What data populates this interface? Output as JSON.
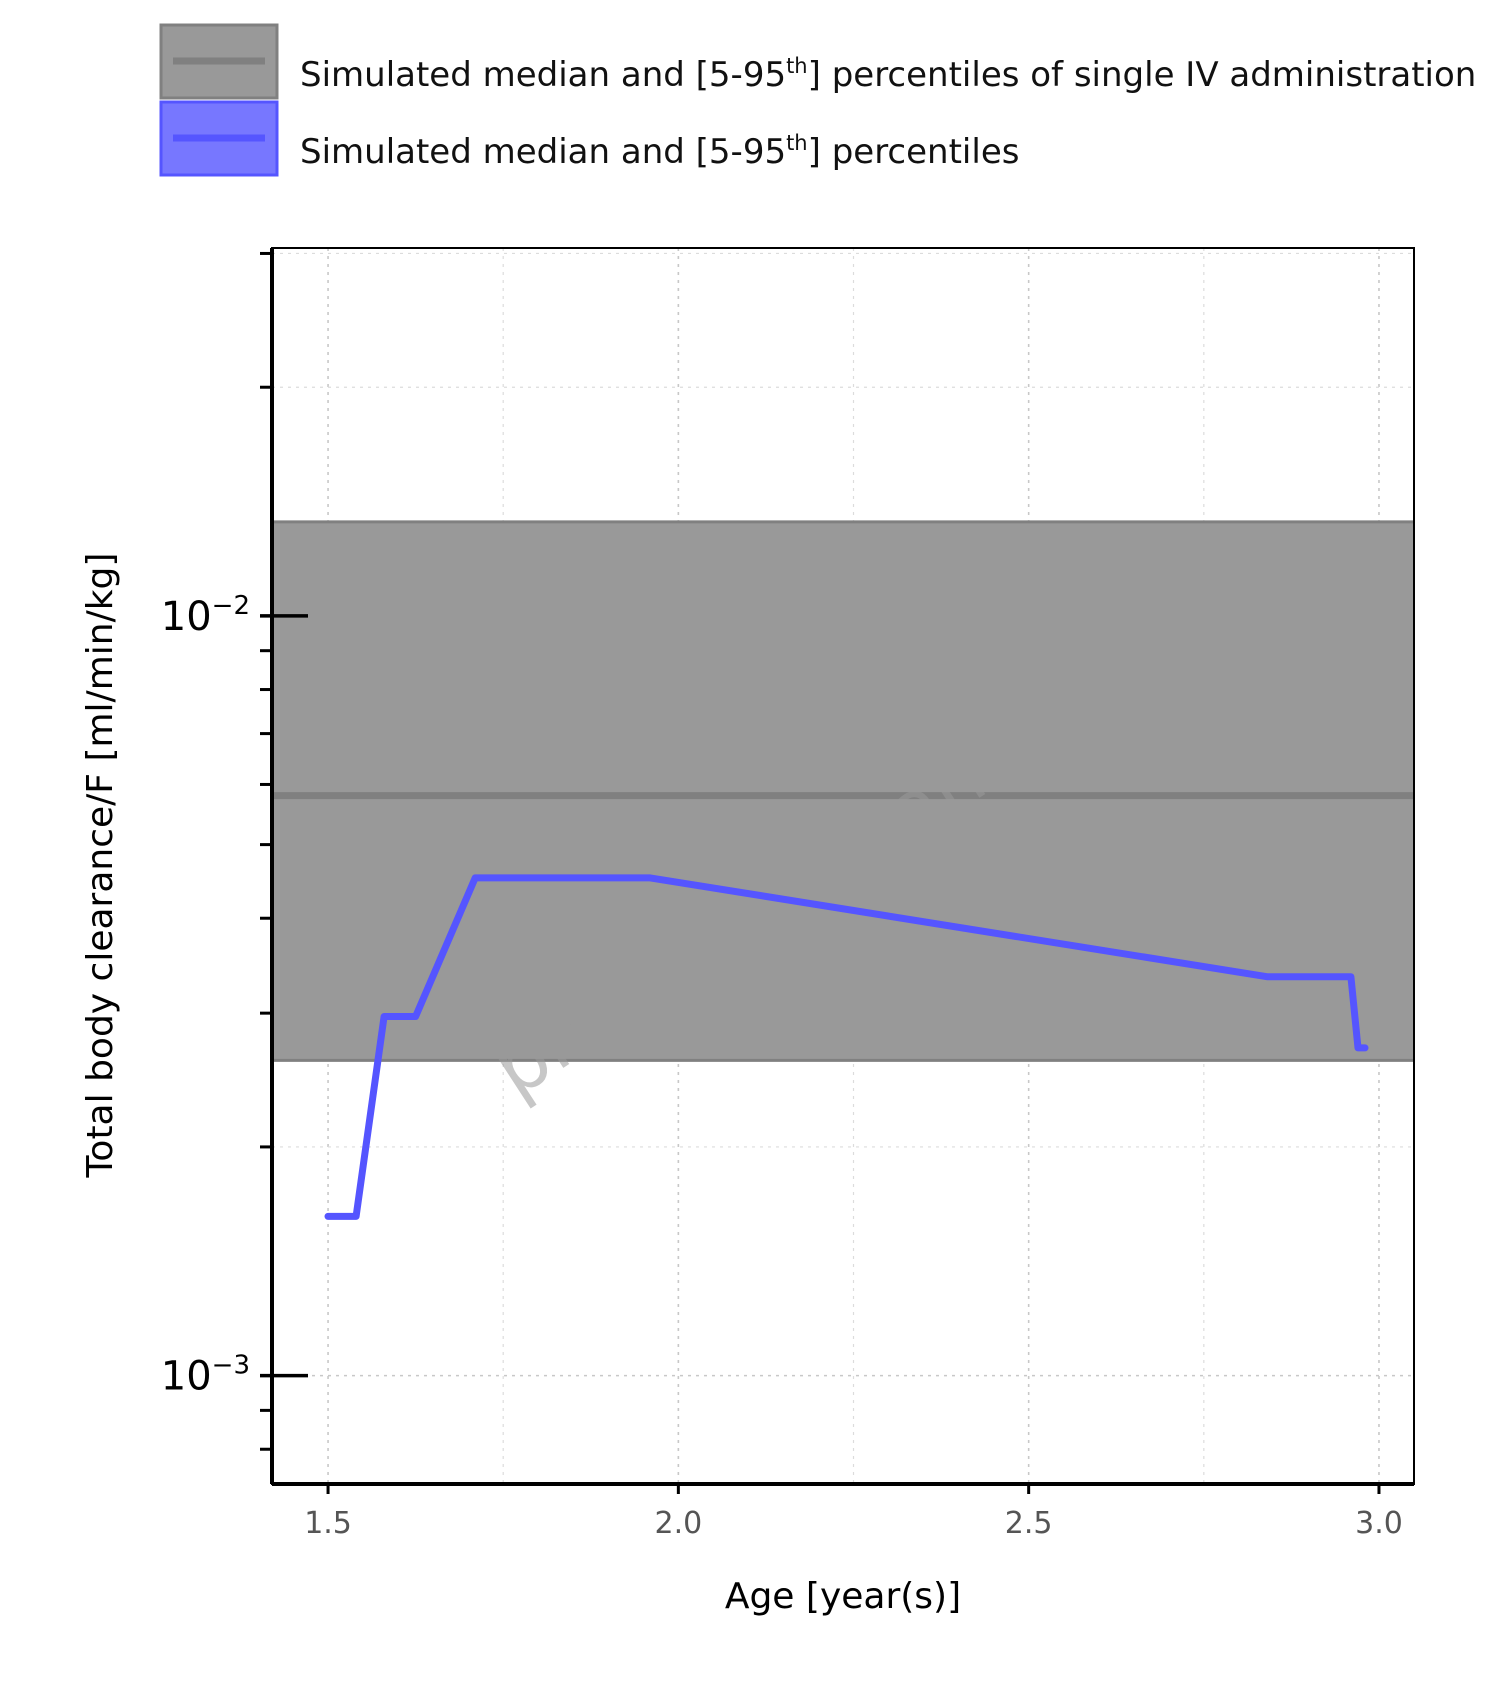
{
  "chart_data": {
    "type": "line",
    "xlabel": "Age [year(s)]",
    "ylabel": "Total body clearance/F [ml/min/kg]",
    "xlim": [
      1.42,
      3.05
    ],
    "ylim": [
      0.00072,
      0.0305
    ],
    "y_scale": "log",
    "x_ticks": [
      "1.5",
      "2.0",
      "2.5",
      "3.0"
    ],
    "y_ticks": [
      {
        "base": "10",
        "exp": "−2",
        "value": 0.01
      },
      {
        "base": "10",
        "exp": "−3",
        "value": 0.001
      }
    ],
    "grid": true,
    "legend_position": "top",
    "watermark": "preliminary analysis",
    "series": [
      {
        "name_prefix": "Simulated median and [5-95",
        "name_sup": "th",
        "name_suffix": "] percentiles of single IV administration",
        "kind": "band",
        "color": "#808080",
        "fill": "#999999",
        "median": 0.0058,
        "lower": 0.0026,
        "upper": 0.0133
      },
      {
        "name_prefix": "Simulated median and [5-95",
        "name_sup": "th",
        "name_suffix": "] percentiles",
        "kind": "line",
        "color": "#5555ff",
        "fill": "#7777ff",
        "x": [
          1.5,
          1.54,
          1.58,
          1.625,
          1.71,
          1.96,
          2.84,
          2.96,
          2.97,
          2.98
        ],
        "y": [
          0.00162,
          0.00162,
          0.00297,
          0.00297,
          0.00452,
          0.00452,
          0.00335,
          0.00335,
          0.0027,
          0.0027
        ]
      }
    ]
  }
}
